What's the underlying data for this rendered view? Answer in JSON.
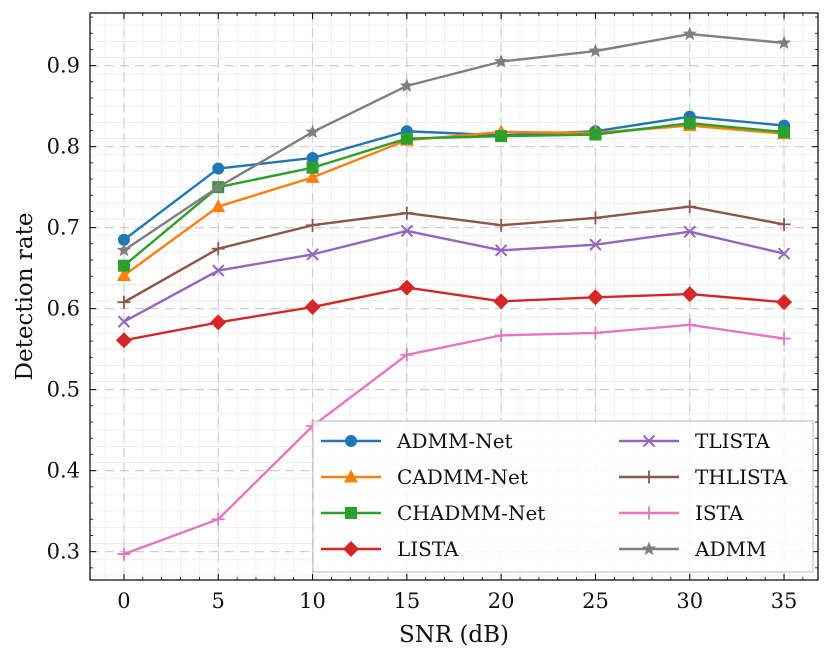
{
  "chart_data": {
    "type": "line",
    "title": "",
    "xlabel": "SNR (dB)",
    "ylabel": "Detection rate",
    "x": [
      0,
      5,
      10,
      15,
      20,
      25,
      30,
      35
    ],
    "xlim": [
      -1.8,
      36.8
    ],
    "ylim": [
      0.265,
      0.965
    ],
    "xticks": [
      0,
      5,
      10,
      15,
      20,
      25,
      30,
      35
    ],
    "yticks": [
      0.3,
      0.4,
      0.5,
      0.6,
      0.7,
      0.8,
      0.9
    ],
    "grid": true,
    "legend_position": "bottom-right",
    "series": [
      {
        "name": "ADMM-Net",
        "color": "#1f77b4",
        "marker": "circle",
        "values": [
          0.685,
          0.773,
          0.786,
          0.819,
          0.814,
          0.819,
          0.837,
          0.826
        ]
      },
      {
        "name": "CADMM-Net",
        "color": "#ff7f0e",
        "marker": "triangle",
        "values": [
          0.641,
          0.726,
          0.762,
          0.808,
          0.818,
          0.817,
          0.826,
          0.816
        ]
      },
      {
        "name": "CHADMM-Net",
        "color": "#2ca02c",
        "marker": "square",
        "values": [
          0.653,
          0.75,
          0.774,
          0.81,
          0.813,
          0.815,
          0.829,
          0.818
        ]
      },
      {
        "name": "LISTA",
        "color": "#d62728",
        "marker": "diamond",
        "values": [
          0.561,
          0.583,
          0.602,
          0.626,
          0.609,
          0.614,
          0.618,
          0.608
        ]
      },
      {
        "name": "TLISTA",
        "color": "#9467bd",
        "marker": "x",
        "values": [
          0.584,
          0.647,
          0.667,
          0.696,
          0.672,
          0.679,
          0.695,
          0.668
        ]
      },
      {
        "name": "THLISTA",
        "color": "#8c564b",
        "marker": "plus",
        "values": [
          0.608,
          0.674,
          0.703,
          0.718,
          0.703,
          0.712,
          0.726,
          0.704
        ]
      },
      {
        "name": "ISTA",
        "color": "#e377c2",
        "marker": "plus",
        "values": [
          0.297,
          0.34,
          0.455,
          0.543,
          0.567,
          0.57,
          0.58,
          0.563
        ]
      },
      {
        "name": "ADMM",
        "color": "#7f7f7f",
        "marker": "star",
        "values": [
          0.672,
          0.75,
          0.818,
          0.875,
          0.905,
          0.918,
          0.939,
          0.928
        ]
      }
    ]
  }
}
